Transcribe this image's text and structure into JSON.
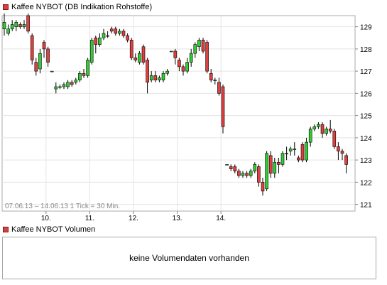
{
  "price_panel": {
    "legend": "Kaffee NYBOT (DB Indikation Rohstoffe)",
    "legend_color": "#d94040",
    "info": "07.06.13 – 14.06.13   1 Tick = 30 Min."
  },
  "volume_panel": {
    "legend": "Kaffee NYBOT Volumen",
    "message": "keine Volumendaten vorhanden"
  },
  "colors": {
    "up": "#33cc33",
    "down": "#e04040",
    "wick": "#000000",
    "grid": "#e4e4e4",
    "border": "#a8a8a8"
  },
  "chart_data": {
    "type": "candlestick",
    "x_ticks": [
      {
        "label": "10.",
        "index": 11
      },
      {
        "label": "11.",
        "index": 22
      },
      {
        "label": "12.",
        "index": 33
      },
      {
        "label": "13.",
        "index": 44
      },
      {
        "label": "14.",
        "index": 55
      }
    ],
    "y_ticks": [
      121,
      122,
      123,
      124,
      125,
      126,
      127,
      128,
      129
    ],
    "ylim": [
      120.7,
      129.5
    ],
    "candles": [
      [
        128.9,
        129.2,
        128.6,
        129.6
      ],
      [
        128.7,
        128.9,
        128.6,
        129.1
      ],
      [
        128.9,
        129.1,
        128.8,
        129.3
      ],
      [
        129.0,
        129.2,
        128.8,
        129.3
      ],
      [
        129.1,
        129.0,
        128.9,
        129.2
      ],
      [
        129.0,
        129.1,
        128.9,
        129.3
      ],
      [
        129.5,
        128.8,
        128.7,
        129.6
      ],
      [
        128.6,
        127.5,
        127.3,
        128.7
      ],
      [
        127.4,
        127.0,
        126.8,
        127.6
      ],
      [
        127.1,
        127.8,
        126.9,
        128.0
      ],
      [
        128.3,
        128.0,
        127.6,
        128.4
      ],
      [
        128.0,
        127.4,
        127.2,
        128.1
      ],
      [
        127.0,
        127.0,
        127.0,
        127.0
      ],
      [
        126.2,
        126.3,
        126.0,
        126.5
      ],
      [
        126.3,
        126.3,
        126.2,
        126.4
      ],
      [
        126.3,
        126.4,
        126.2,
        126.5
      ],
      [
        126.3,
        126.5,
        126.2,
        126.6
      ],
      [
        126.5,
        126.4,
        126.3,
        126.6
      ],
      [
        126.5,
        126.6,
        126.4,
        126.7
      ],
      [
        126.6,
        126.9,
        126.5,
        127.0
      ],
      [
        126.9,
        126.8,
        126.7,
        127.1
      ],
      [
        126.8,
        127.5,
        126.7,
        127.6
      ],
      [
        127.4,
        128.4,
        127.3,
        128.5
      ],
      [
        128.5,
        128.2,
        127.8,
        128.6
      ],
      [
        128.2,
        128.5,
        128.1,
        128.7
      ],
      [
        128.5,
        128.7,
        128.4,
        128.9
      ],
      [
        128.6,
        128.6,
        128.5,
        128.8
      ],
      [
        128.9,
        128.8,
        128.7,
        129.0
      ],
      [
        128.9,
        128.7,
        128.6,
        129.0
      ],
      [
        128.7,
        128.8,
        128.6,
        128.9
      ],
      [
        128.8,
        128.6,
        128.5,
        128.9
      ],
      [
        128.6,
        128.4,
        128.3,
        128.7
      ],
      [
        128.4,
        127.6,
        127.5,
        128.5
      ],
      [
        127.6,
        127.5,
        127.4,
        127.8
      ],
      [
        127.4,
        127.8,
        127.3,
        127.9
      ],
      [
        128.1,
        127.4,
        127.3,
        128.2
      ],
      [
        127.5,
        126.5,
        126.0,
        127.6
      ],
      [
        126.6,
        126.8,
        126.5,
        127.0
      ],
      [
        126.8,
        126.6,
        126.5,
        127.0
      ],
      [
        126.6,
        126.7,
        126.5,
        126.8
      ],
      [
        126.6,
        126.9,
        126.5,
        127.0
      ],
      [
        126.9,
        127.0,
        126.8,
        127.1
      ],
      [
        127.9,
        127.9,
        127.9,
        127.9
      ],
      [
        127.9,
        127.6,
        127.3,
        128.0
      ],
      [
        127.5,
        127.2,
        127.0,
        127.6
      ],
      [
        127.2,
        127.0,
        126.8,
        127.3
      ],
      [
        127.0,
        127.4,
        126.9,
        127.6
      ],
      [
        127.4,
        127.8,
        127.2,
        128.0
      ],
      [
        127.8,
        128.2,
        127.6,
        128.3
      ],
      [
        128.1,
        128.4,
        127.9,
        128.5
      ],
      [
        128.4,
        127.9,
        127.8,
        128.5
      ],
      [
        128.3,
        127.0,
        126.9,
        128.4
      ],
      [
        126.9,
        126.6,
        126.5,
        127.1
      ],
      [
        126.6,
        126.6,
        126.4,
        126.7
      ],
      [
        126.5,
        126.0,
        125.9,
        126.7
      ],
      [
        126.3,
        124.5,
        124.2,
        126.4
      ],
      [
        122.8,
        122.8,
        122.8,
        122.8
      ],
      [
        122.7,
        122.6,
        122.5,
        122.8
      ],
      [
        122.7,
        122.5,
        122.4,
        122.8
      ],
      [
        122.5,
        122.3,
        122.2,
        122.6
      ],
      [
        122.3,
        122.4,
        122.2,
        122.5
      ],
      [
        122.4,
        122.3,
        122.2,
        122.5
      ],
      [
        122.3,
        122.5,
        122.2,
        122.6
      ],
      [
        122.5,
        122.8,
        122.4,
        122.9
      ],
      [
        122.7,
        122.0,
        121.8,
        122.8
      ],
      [
        122.0,
        121.6,
        121.4,
        122.2
      ],
      [
        121.7,
        123.3,
        121.6,
        123.4
      ],
      [
        123.2,
        122.4,
        122.2,
        123.4
      ],
      [
        122.4,
        122.9,
        122.2,
        123.1
      ],
      [
        122.9,
        122.8,
        122.4,
        123.1
      ],
      [
        122.8,
        123.3,
        122.7,
        123.4
      ],
      [
        123.3,
        123.3,
        123.0,
        123.6
      ],
      [
        123.4,
        123.5,
        123.2,
        123.6
      ],
      [
        123.5,
        123.5,
        123.2,
        123.8
      ],
      [
        123.1,
        123.0,
        122.9,
        123.2
      ],
      [
        123.7,
        123.0,
        122.9,
        123.8
      ],
      [
        123.0,
        123.8,
        122.9,
        124.0
      ],
      [
        123.8,
        124.4,
        123.6,
        124.5
      ],
      [
        124.4,
        124.5,
        124.3,
        124.6
      ],
      [
        124.5,
        124.6,
        124.4,
        124.7
      ],
      [
        124.6,
        124.2,
        124.0,
        124.7
      ],
      [
        124.2,
        124.4,
        124.1,
        124.5
      ],
      [
        124.4,
        124.3,
        124.2,
        124.8
      ],
      [
        124.3,
        123.6,
        123.5,
        124.4
      ],
      [
        123.6,
        123.4,
        123.0,
        123.8
      ],
      [
        123.4,
        123.3,
        123.0,
        123.5
      ],
      [
        123.2,
        122.8,
        122.4,
        123.3
      ]
    ]
  }
}
